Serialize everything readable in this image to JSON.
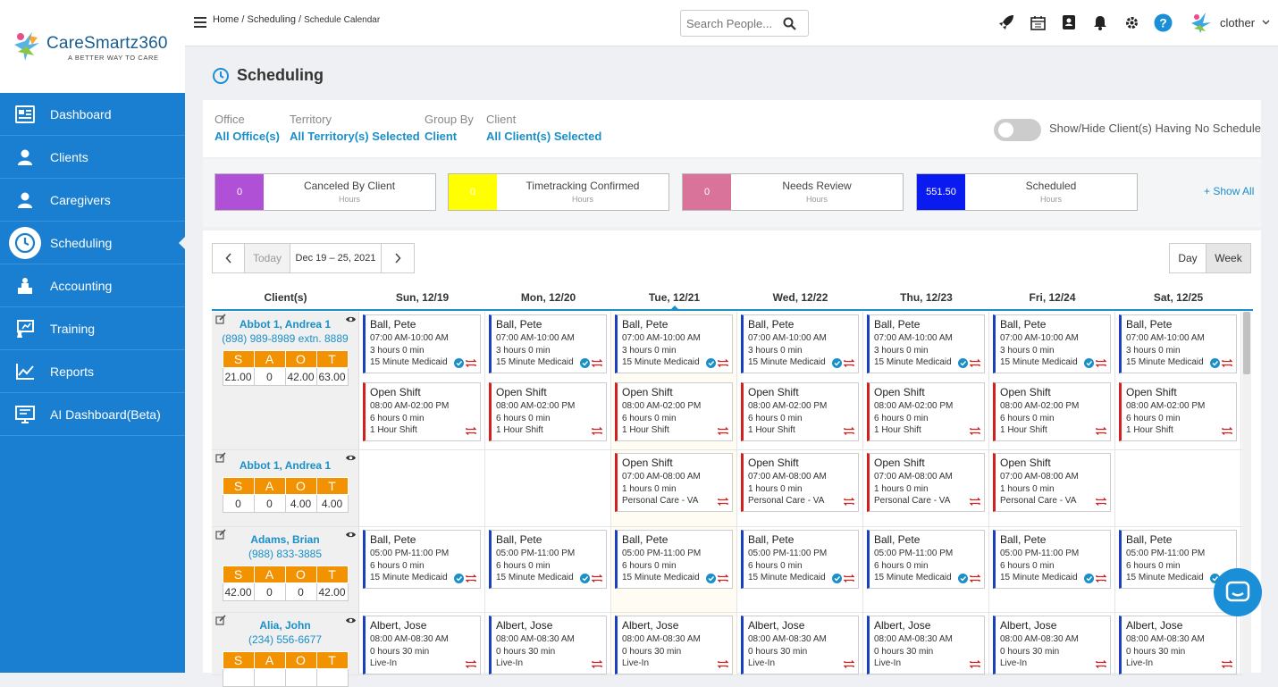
{
  "brand": {
    "name": "CareSmartz360",
    "tagline": "A BETTER WAY TO CARE"
  },
  "nav": [
    {
      "label": "Dashboard",
      "icon": "dashboard-icon"
    },
    {
      "label": "Clients",
      "icon": "clients-icon"
    },
    {
      "label": "Caregivers",
      "icon": "caregivers-icon"
    },
    {
      "label": "Scheduling",
      "icon": "clock-icon",
      "active": true
    },
    {
      "label": "Accounting",
      "icon": "accounting-icon"
    },
    {
      "label": "Training",
      "icon": "training-icon"
    },
    {
      "label": "Reports",
      "icon": "reports-icon"
    },
    {
      "label": "AI Dashboard(Beta)",
      "icon": "ai-dashboard-icon"
    }
  ],
  "breadcrumb": {
    "home": "Home",
    "sep1": " / ",
    "scheduling": "Scheduling",
    "sep2": " / ",
    "current": "Schedule Calendar"
  },
  "search": {
    "placeholder": "Search People..."
  },
  "user": {
    "name": "clother"
  },
  "page": {
    "title": "Scheduling"
  },
  "filters": [
    {
      "label": "Office",
      "value": "All Office(s)"
    },
    {
      "label": "Territory",
      "value": "All Territory(s) Selected"
    },
    {
      "label": "Group By",
      "value": "Client"
    },
    {
      "label": "Client",
      "value": "All Client(s) Selected"
    }
  ],
  "toggle_label": "Show/Hide Client(s) Having No Schedule",
  "stats": [
    {
      "value": "0",
      "label": "Canceled By Client",
      "unit": "Hours",
      "color": "#b050d6"
    },
    {
      "value": "0",
      "label": "Timetracking Confirmed",
      "unit": "Hours",
      "color": "#ffff00"
    },
    {
      "value": "0",
      "label": "Needs Review",
      "unit": "Hours",
      "color": "#d9739a"
    },
    {
      "value": "551.50",
      "label": "Scheduled",
      "unit": "Hours",
      "color": "#0a1bf0"
    }
  ],
  "show_all": "+ Show All",
  "calendar": {
    "today_label": "Today",
    "range": "Dec 19 – 25, 2021",
    "day_label": "Day",
    "week_label": "Week",
    "client_col": "Client(s)",
    "days": [
      "Sun, 12/19",
      "Mon, 12/20",
      "Tue, 12/21",
      "Wed, 12/22",
      "Thu, 12/23",
      "Fri, 12/24",
      "Sat, 12/25"
    ]
  },
  "saot_headers": [
    "S",
    "A",
    "O",
    "T"
  ],
  "rows": [
    {
      "client": "Abbot 1, Andrea 1",
      "phone": "(898) 989-8989 extn. 8889",
      "saot": [
        "21.00",
        "0",
        "42.00",
        "63.00"
      ],
      "days": [
        [
          {
            "name": "Ball, Pete",
            "time": "07:00 AM-10:00 AM",
            "dur": "3 hours 0 min",
            "type": "15 Minute Medicaid",
            "open": false,
            "check": true
          },
          {
            "name": "Open Shift",
            "time": "08:00 AM-02:00 PM",
            "dur": "6 hours 0 min",
            "type": "1 Hour Shift",
            "open": true,
            "check": false
          }
        ],
        [
          {
            "name": "Ball, Pete",
            "time": "07:00 AM-10:00 AM",
            "dur": "3 hours 0 min",
            "type": "15 Minute Medicaid",
            "open": false,
            "check": true
          },
          {
            "name": "Open Shift",
            "time": "08:00 AM-02:00 PM",
            "dur": "6 hours 0 min",
            "type": "1 Hour Shift",
            "open": true,
            "check": false
          }
        ],
        [
          {
            "name": "Ball, Pete",
            "time": "07:00 AM-10:00 AM",
            "dur": "3 hours 0 min",
            "type": "15 Minute Medicaid",
            "open": false,
            "check": true
          },
          {
            "name": "Open Shift",
            "time": "08:00 AM-02:00 PM",
            "dur": "6 hours 0 min",
            "type": "1 Hour Shift",
            "open": true,
            "check": false
          }
        ],
        [
          {
            "name": "Ball, Pete",
            "time": "07:00 AM-10:00 AM",
            "dur": "3 hours 0 min",
            "type": "15 Minute Medicaid",
            "open": false,
            "check": true
          },
          {
            "name": "Open Shift",
            "time": "08:00 AM-02:00 PM",
            "dur": "6 hours 0 min",
            "type": "1 Hour Shift",
            "open": true,
            "check": false
          }
        ],
        [
          {
            "name": "Ball, Pete",
            "time": "07:00 AM-10:00 AM",
            "dur": "3 hours 0 min",
            "type": "15 Minute Medicaid",
            "open": false,
            "check": true
          },
          {
            "name": "Open Shift",
            "time": "08:00 AM-02:00 PM",
            "dur": "6 hours 0 min",
            "type": "1 Hour Shift",
            "open": true,
            "check": false
          }
        ],
        [
          {
            "name": "Ball, Pete",
            "time": "07:00 AM-10:00 AM",
            "dur": "3 hours 0 min",
            "type": "15 Minute Medicaid",
            "open": false,
            "check": true
          },
          {
            "name": "Open Shift",
            "time": "08:00 AM-02:00 PM",
            "dur": "6 hours 0 min",
            "type": "1 Hour Shift",
            "open": true,
            "check": false
          }
        ],
        [
          {
            "name": "Ball, Pete",
            "time": "07:00 AM-10:00 AM",
            "dur": "3 hours 0 min",
            "type": "15 Minute Medicaid",
            "open": false,
            "check": true
          },
          {
            "name": "Open Shift",
            "time": "08:00 AM-02:00 PM",
            "dur": "6 hours 0 min",
            "type": "1 Hour Shift",
            "open": true,
            "check": false
          }
        ]
      ]
    },
    {
      "client": "Abbot 1, Andrea 1",
      "phone": "",
      "saot": [
        "0",
        "0",
        "4.00",
        "4.00"
      ],
      "days": [
        [],
        [],
        [
          {
            "name": "Open Shift",
            "time": "07:00 AM-08:00 AM",
            "dur": "1 hours 0 min",
            "type": "Personal Care - VA",
            "open": true,
            "check": false
          }
        ],
        [
          {
            "name": "Open Shift",
            "time": "07:00 AM-08:00 AM",
            "dur": "1 hours 0 min",
            "type": "Personal Care - VA",
            "open": true,
            "check": false
          }
        ],
        [
          {
            "name": "Open Shift",
            "time": "07:00 AM-08:00 AM",
            "dur": "1 hours 0 min",
            "type": "Personal Care - VA",
            "open": true,
            "check": false
          }
        ],
        [
          {
            "name": "Open Shift",
            "time": "07:00 AM-08:00 AM",
            "dur": "1 hours 0 min",
            "type": "Personal Care - VA",
            "open": true,
            "check": false
          }
        ],
        []
      ]
    },
    {
      "client": "Adams, Brian",
      "phone": "(988) 833-3885",
      "saot": [
        "42.00",
        "0",
        "0",
        "42.00"
      ],
      "days": [
        [
          {
            "name": "Ball, Pete",
            "time": "05:00 PM-11:00 PM",
            "dur": "6 hours 0 min",
            "type": "15 Minute Medicaid",
            "open": false,
            "check": true
          }
        ],
        [
          {
            "name": "Ball, Pete",
            "time": "05:00 PM-11:00 PM",
            "dur": "6 hours 0 min",
            "type": "15 Minute Medicaid",
            "open": false,
            "check": true
          }
        ],
        [
          {
            "name": "Ball, Pete",
            "time": "05:00 PM-11:00 PM",
            "dur": "6 hours 0 min",
            "type": "15 Minute Medicaid",
            "open": false,
            "check": true
          }
        ],
        [
          {
            "name": "Ball, Pete",
            "time": "05:00 PM-11:00 PM",
            "dur": "6 hours 0 min",
            "type": "15 Minute Medicaid",
            "open": false,
            "check": true
          }
        ],
        [
          {
            "name": "Ball, Pete",
            "time": "05:00 PM-11:00 PM",
            "dur": "6 hours 0 min",
            "type": "15 Minute Medicaid",
            "open": false,
            "check": true
          }
        ],
        [
          {
            "name": "Ball, Pete",
            "time": "05:00 PM-11:00 PM",
            "dur": "6 hours 0 min",
            "type": "15 Minute Medicaid",
            "open": false,
            "check": true
          }
        ],
        [
          {
            "name": "Ball, Pete",
            "time": "05:00 PM-11:00 PM",
            "dur": "6 hours 0 min",
            "type": "15 Minute Medicaid",
            "open": false,
            "check": true
          }
        ]
      ]
    },
    {
      "client": "Alia, John",
      "phone": "(234) 556-6677",
      "saot": [
        "",
        "",
        "",
        ""
      ],
      "days": [
        [
          {
            "name": "Albert, Jose",
            "time": "08:00 AM-08:30 AM",
            "dur": "0 hours 30 min",
            "type": "Live-In",
            "open": false,
            "check": false
          }
        ],
        [
          {
            "name": "Albert, Jose",
            "time": "08:00 AM-08:30 AM",
            "dur": "0 hours 30 min",
            "type": "Live-In",
            "open": false,
            "check": false
          }
        ],
        [
          {
            "name": "Albert, Jose",
            "time": "08:00 AM-08:30 AM",
            "dur": "0 hours 30 min",
            "type": "Live-In",
            "open": false,
            "check": false
          }
        ],
        [
          {
            "name": "Albert, Jose",
            "time": "08:00 AM-08:30 AM",
            "dur": "0 hours 30 min",
            "type": "Live-In",
            "open": false,
            "check": false
          }
        ],
        [
          {
            "name": "Albert, Jose",
            "time": "08:00 AM-08:30 AM",
            "dur": "0 hours 30 min",
            "type": "Live-In",
            "open": false,
            "check": false
          }
        ],
        [
          {
            "name": "Albert, Jose",
            "time": "08:00 AM-08:30 AM",
            "dur": "0 hours 30 min",
            "type": "Live-In",
            "open": false,
            "check": false
          }
        ],
        [
          {
            "name": "Albert, Jose",
            "time": "08:00 AM-08:30 AM",
            "dur": "0 hours 30 min",
            "type": "Live-In",
            "open": false,
            "check": false
          }
        ]
      ]
    }
  ]
}
